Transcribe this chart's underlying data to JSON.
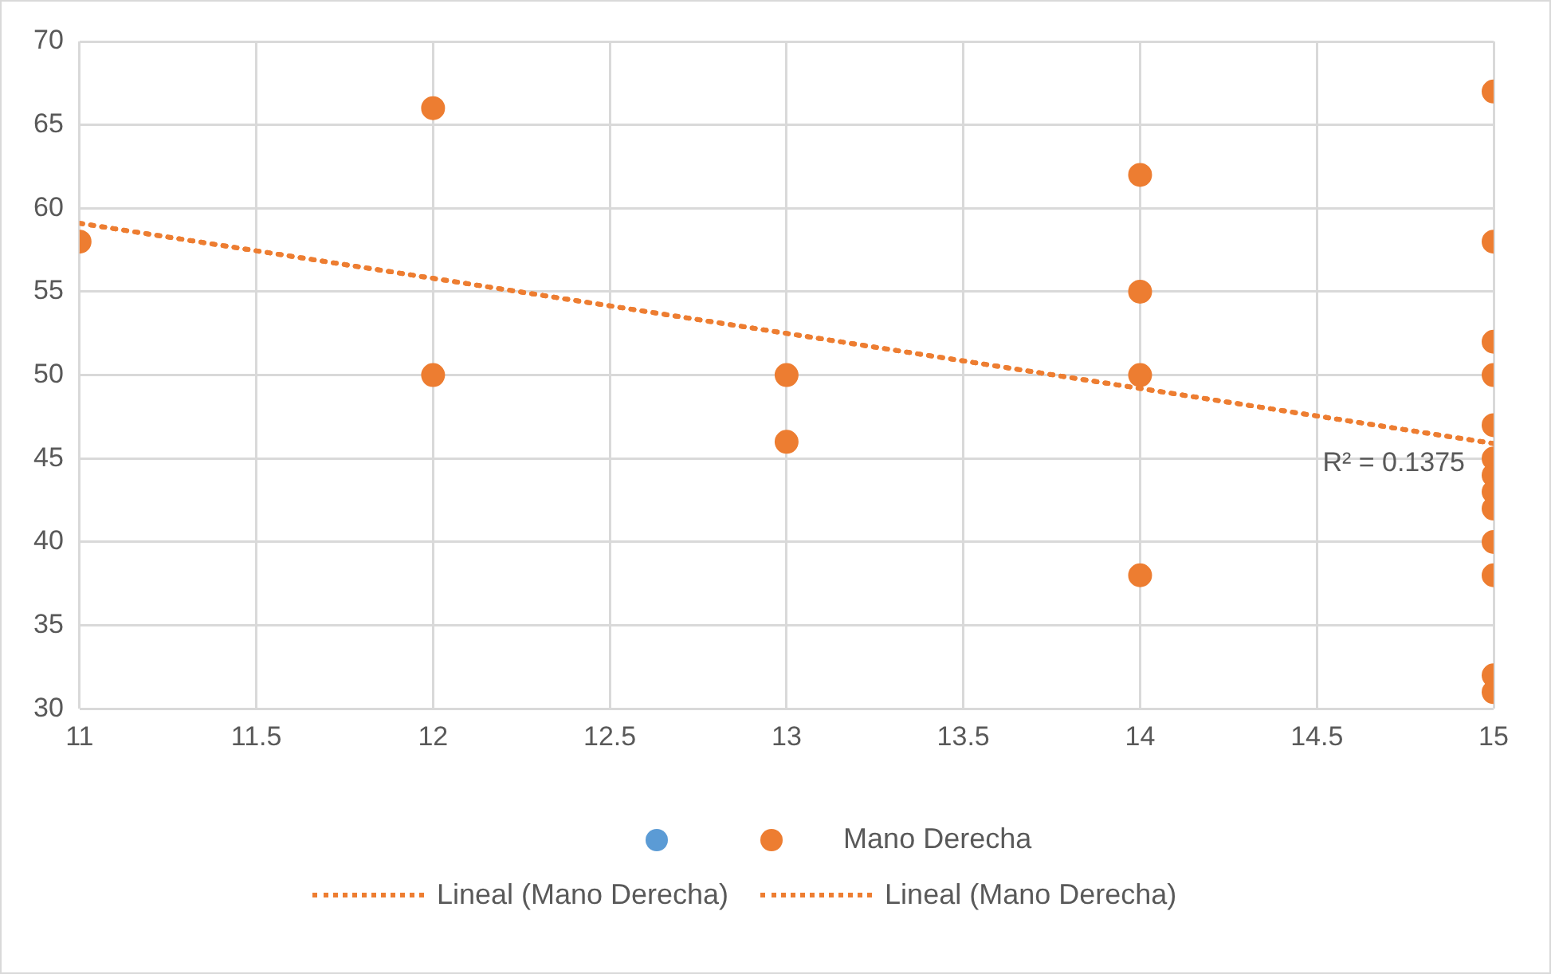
{
  "chart_data": {
    "type": "scatter",
    "xlim": [
      11,
      15
    ],
    "xticks": [
      11,
      11.5,
      12,
      12.5,
      13,
      13.5,
      14,
      14.5,
      15
    ],
    "ylim": [
      30,
      70
    ],
    "yticks": [
      30,
      35,
      40,
      45,
      50,
      55,
      60,
      65,
      70
    ],
    "grid": true,
    "legend": "bottom",
    "marker": "circle",
    "annotations": [
      {
        "text": "R² = 0.1375",
        "x": 15,
        "y": 45.9
      }
    ],
    "series": [
      {
        "type": "scatter",
        "color": "#5b9bd5"
      },
      {
        "name": "Mano Derecha",
        "type": "scatter",
        "color": "#ed7d31",
        "x": [
          11,
          12,
          12,
          13,
          13,
          14,
          14,
          14,
          14,
          15,
          15,
          15,
          15,
          15,
          15,
          15,
          15,
          15,
          15,
          15,
          15,
          15
        ],
        "values": [
          58,
          66,
          50,
          50,
          46,
          62,
          55,
          50,
          38,
          67,
          58,
          52,
          50,
          47,
          45,
          44,
          43,
          42,
          40,
          38,
          32,
          31
        ]
      },
      {
        "name": "Lineal (Mano Derecha)",
        "type": "line",
        "line_style": "dotted",
        "marker": "none",
        "color": "#ed7d31",
        "x": [
          11,
          15
        ],
        "values": [
          59.1,
          45.9
        ]
      },
      {
        "name": "Lineal (Mano Derecha)",
        "type": "line",
        "line_style": "dotted",
        "marker": "none",
        "color": "#ed7d31",
        "x": [
          11,
          15
        ],
        "values": [
          59.1,
          45.9
        ]
      }
    ]
  }
}
